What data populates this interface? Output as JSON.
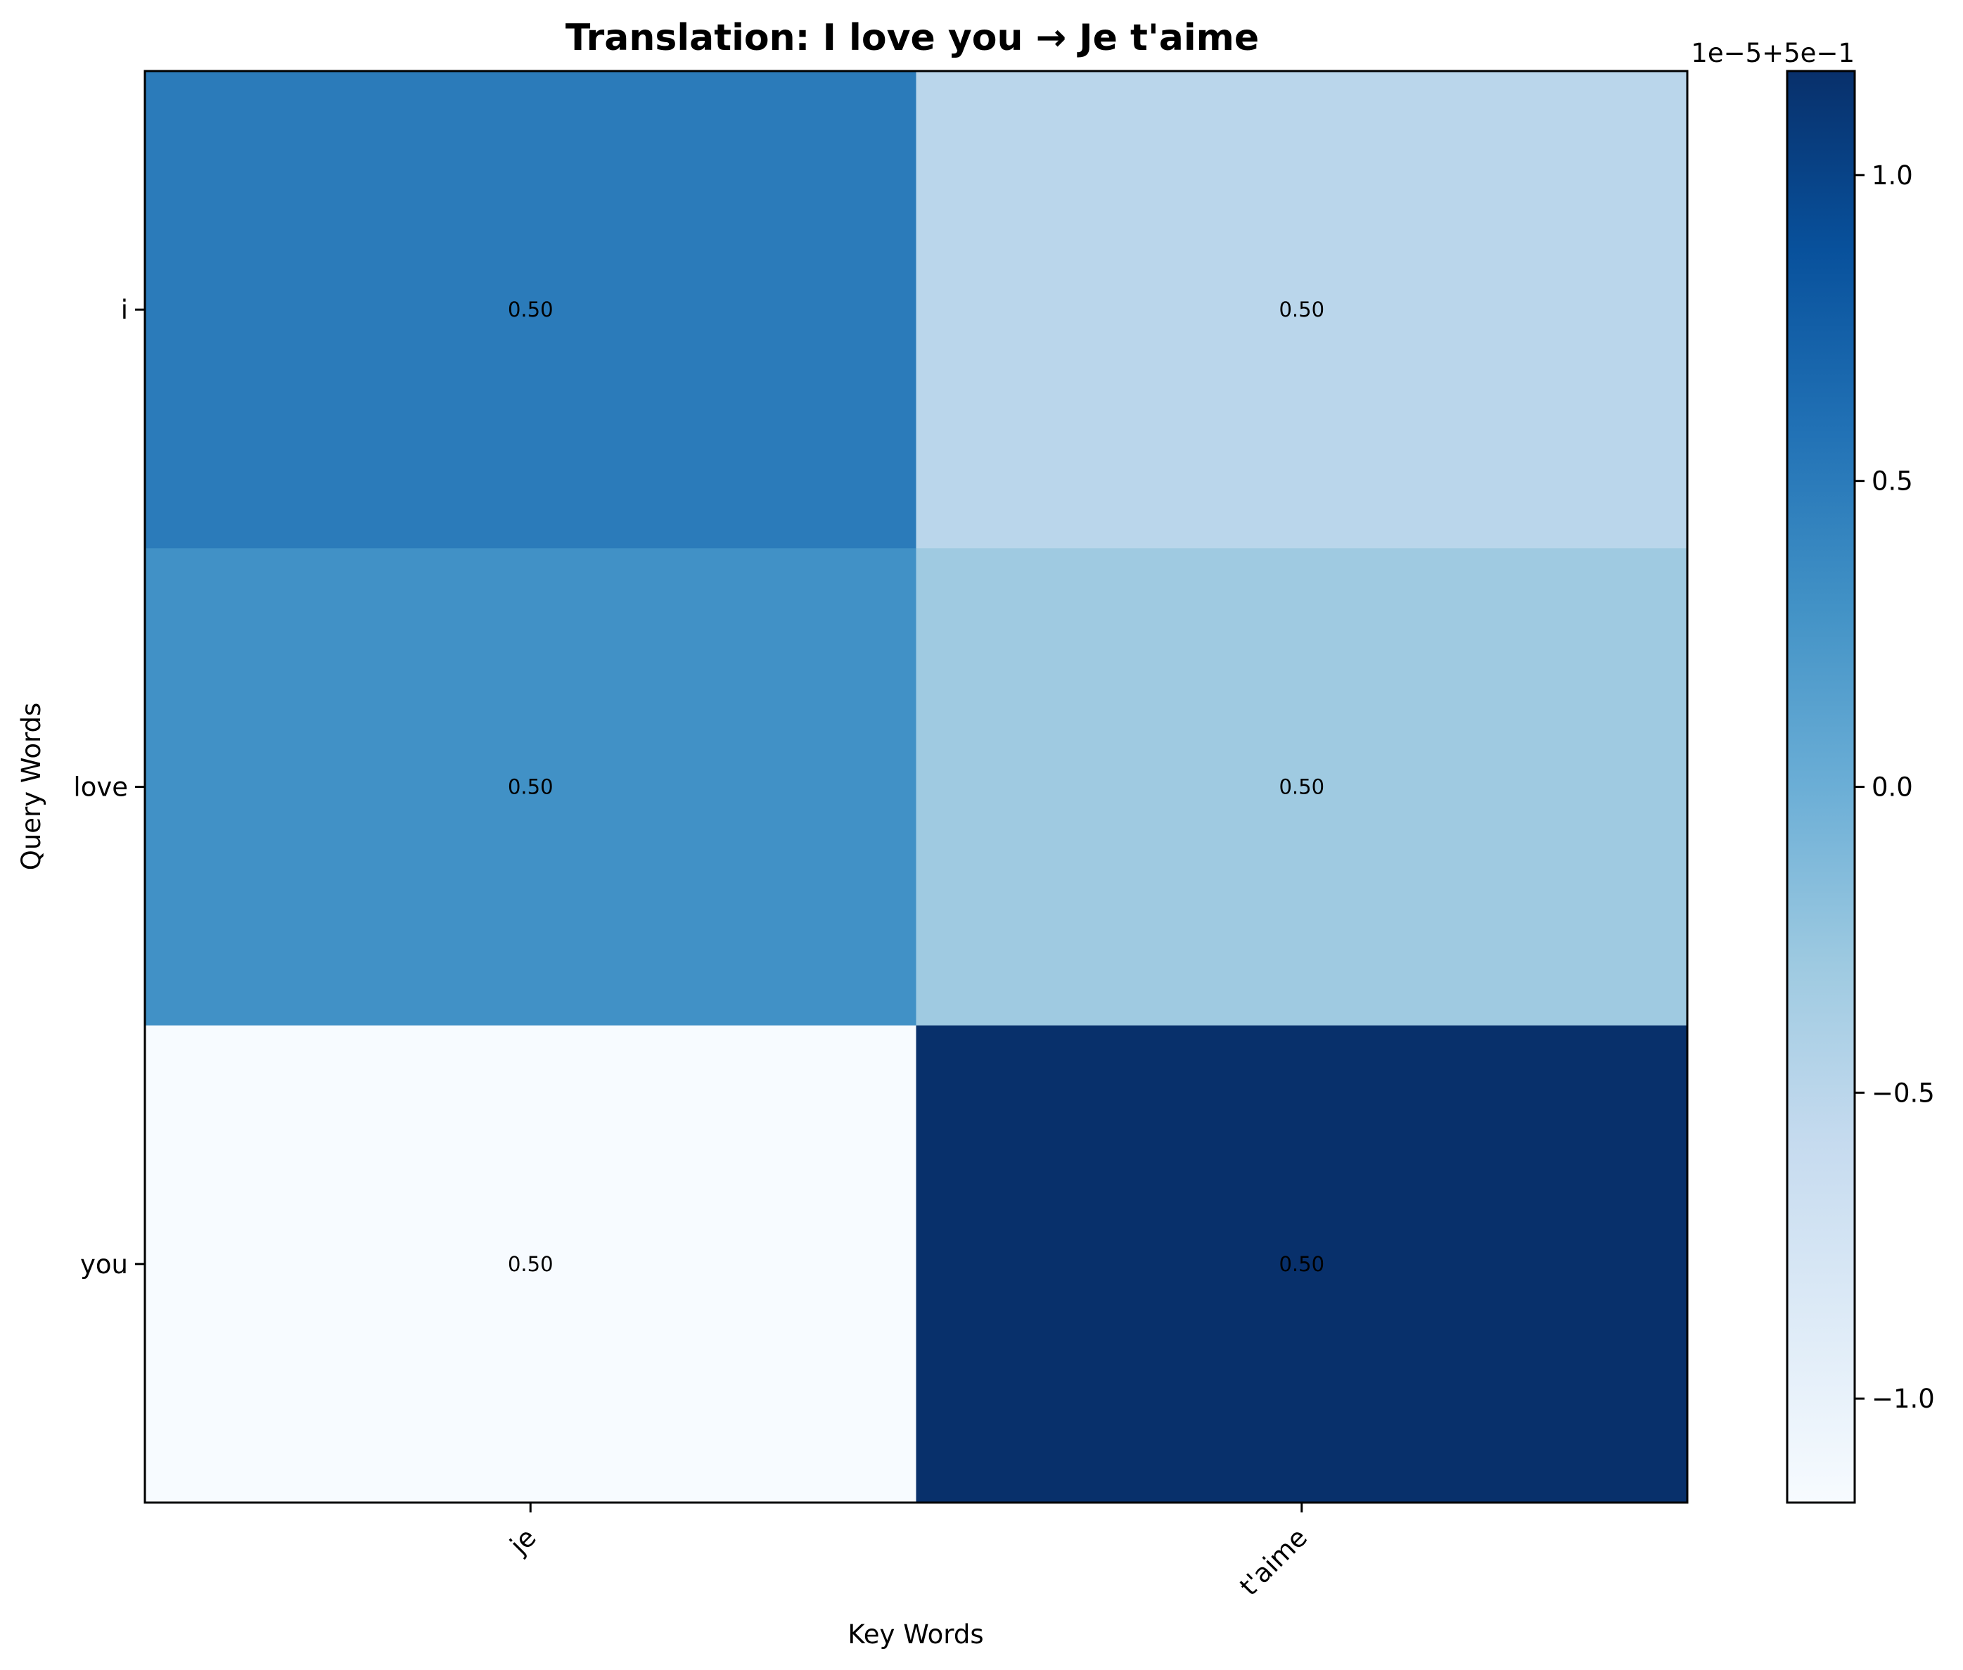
{
  "chart_data": {
    "type": "heatmap",
    "title": "Translation: I love you → Je t'aime",
    "xlabel": "Key Words",
    "ylabel": "Query Words",
    "x_categories": [
      "je",
      "t'aime"
    ],
    "y_categories": [
      "i",
      "love",
      "you"
    ],
    "values": [
      [
        0.500005,
        0.499995
      ],
      [
        0.500003,
        0.499997
      ],
      [
        0.499988,
        0.500012
      ]
    ],
    "cell_labels": [
      [
        "0.50",
        "0.50"
      ],
      [
        "0.50",
        "0.50"
      ],
      [
        "0.50",
        "0.50"
      ]
    ],
    "colormap": "Blues",
    "color_range": [
      0.4999883,
      0.5000117
    ],
    "colorbar": {
      "offset_text": "1e−5+5e−1",
      "tick_values": [
        1.0,
        0.5,
        0.0,
        -0.5,
        -1.0
      ],
      "tick_labels": [
        "1.0",
        "0.5",
        "0.0",
        "−0.5",
        "−1.0"
      ],
      "range": [
        -1.17,
        1.17
      ]
    },
    "colors": {
      "blues_low": "#f7fbff",
      "blues_high": "#08306b"
    }
  }
}
